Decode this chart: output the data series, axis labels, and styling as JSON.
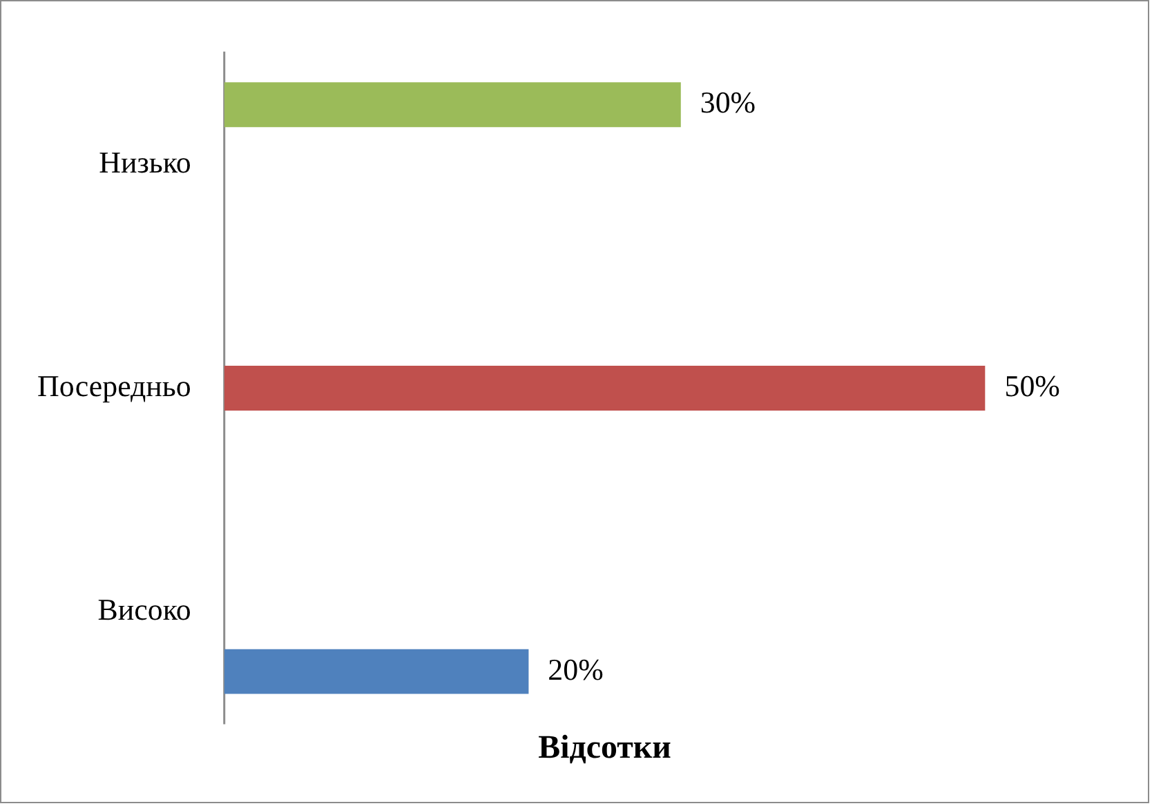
{
  "chart_data": {
    "type": "bar",
    "orientation": "horizontal",
    "xlabel": "Відсотки",
    "categories": [
      "Низько",
      "Посередньо",
      "Високо"
    ],
    "series": [
      {
        "color": "#9bbb59",
        "values": [
          30,
          null,
          null
        ],
        "value_labels": [
          "30%",
          null,
          null
        ]
      },
      {
        "color": "#c0504d",
        "values": [
          null,
          50,
          null
        ],
        "value_labels": [
          null,
          "50%",
          null
        ]
      },
      {
        "color": "#4f81bd",
        "values": [
          null,
          null,
          20
        ],
        "value_labels": [
          null,
          null,
          "20%"
        ]
      }
    ],
    "tick_labels": "y",
    "grid": false,
    "legend": false
  }
}
